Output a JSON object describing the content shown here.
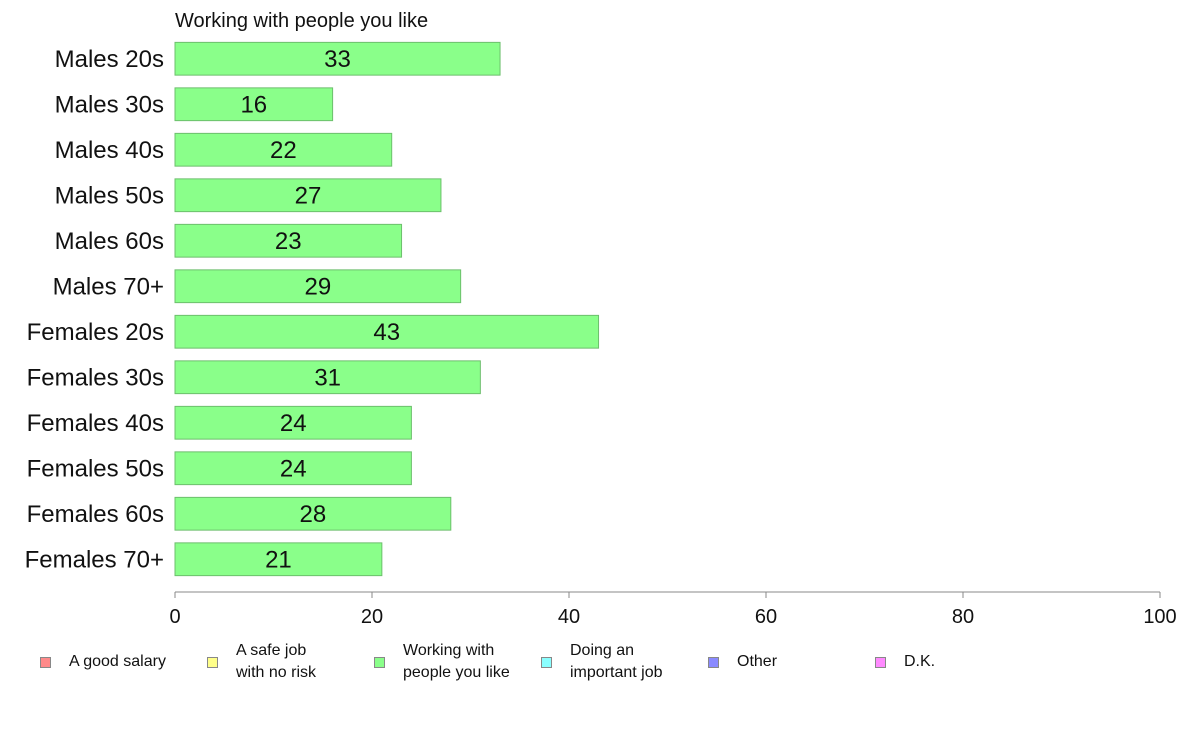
{
  "chart_data": {
    "type": "bar",
    "orientation": "horizontal",
    "title": "Working with people you like",
    "categories": [
      "Males 20s",
      "Males 30s",
      "Males 40s",
      "Males 50s",
      "Males 60s",
      "Males 70+",
      "Females 20s",
      "Females 30s",
      "Females 40s",
      "Females 50s",
      "Females 60s",
      "Females 70+"
    ],
    "values": [
      33,
      16,
      22,
      27,
      23,
      29,
      43,
      31,
      24,
      24,
      28,
      21
    ],
    "value_labels": [
      "33",
      "16",
      "22",
      "27",
      "23",
      "29",
      "43",
      "31",
      "24",
      "24",
      "28",
      "21"
    ],
    "xlim": [
      0,
      100
    ],
    "x_ticks": [
      "0",
      "20",
      "40",
      "60",
      "80",
      "100"
    ],
    "xlabel": "",
    "ylabel": "",
    "grid": false,
    "bar_color": "#8aff8a",
    "bar_stroke": "#6cbf6c",
    "legend": {
      "placement": "bottom",
      "items": [
        {
          "label": "A good salary",
          "color": "#ff8a8a"
        },
        {
          "label": "A safe job\nwith no risk",
          "color": "#ffff8a"
        },
        {
          "label": "Working with\npeople you like",
          "color": "#8aff8a"
        },
        {
          "label": "Doing an\nimportant job",
          "color": "#8affff"
        },
        {
          "label": "Other",
          "color": "#8a8aff"
        },
        {
          "label": "D.K.",
          "color": "#ff8aff"
        }
      ]
    }
  }
}
